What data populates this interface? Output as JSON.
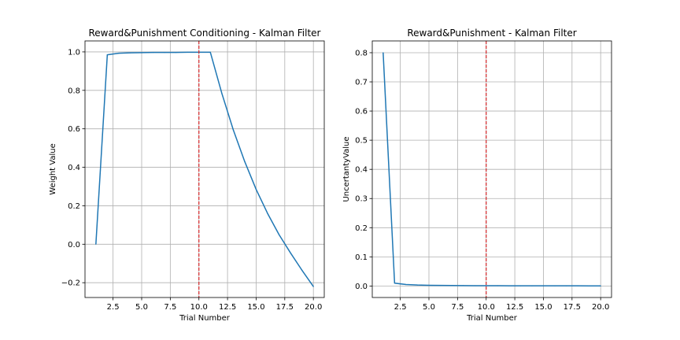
{
  "chart_data": [
    {
      "type": "line",
      "title": "Reward&Punishment Conditioning - Kalman Filter",
      "xlabel": "Trial Number",
      "ylabel": "Weight Value",
      "xlim": [
        0.05,
        20.95
      ],
      "ylim": [
        -0.277,
        1.057
      ],
      "xticks": [
        2.5,
        5.0,
        7.5,
        10.0,
        12.5,
        15.0,
        17.5,
        20.0
      ],
      "xtick_labels": [
        "2.5",
        "5.0",
        "7.5",
        "10.0",
        "12.5",
        "15.0",
        "17.5",
        "20.0"
      ],
      "yticks": [
        -0.2,
        0.0,
        0.2,
        0.4,
        0.6,
        0.8,
        1.0
      ],
      "ytick_labels": [
        "−0.2",
        "0.0",
        "0.2",
        "0.4",
        "0.6",
        "0.8",
        "1.0"
      ],
      "grid": true,
      "vline": {
        "x": 10,
        "color": "#d62728",
        "style": "dashed"
      },
      "series": [
        {
          "color": "#1f77b4",
          "x": [
            1,
            2,
            3,
            4,
            5,
            6,
            7,
            8,
            9,
            10,
            11,
            12,
            13,
            14,
            15,
            16,
            17,
            18,
            19,
            20
          ],
          "y": [
            0.0,
            0.985,
            0.993,
            0.995,
            0.996,
            0.997,
            0.997,
            0.997,
            0.998,
            0.998,
            0.998,
            0.785,
            0.595,
            0.43,
            0.285,
            0.16,
            0.05,
            -0.045,
            -0.135,
            -0.22
          ]
        }
      ]
    },
    {
      "type": "line",
      "title": "Reward&Punishment - Kalman Filter",
      "xlabel": "Trial Number",
      "ylabel": "UncertantyValue",
      "xlim": [
        0.05,
        20.95
      ],
      "ylim": [
        -0.0394,
        0.8404
      ],
      "xticks": [
        2.5,
        5.0,
        7.5,
        10.0,
        12.5,
        15.0,
        17.5,
        20.0
      ],
      "xtick_labels": [
        "2.5",
        "5.0",
        "7.5",
        "10.0",
        "12.5",
        "15.0",
        "17.5",
        "20.0"
      ],
      "yticks": [
        0.0,
        0.1,
        0.2,
        0.3,
        0.4,
        0.5,
        0.6,
        0.7,
        0.8
      ],
      "ytick_labels": [
        "0.0",
        "0.1",
        "0.2",
        "0.3",
        "0.4",
        "0.5",
        "0.6",
        "0.7",
        "0.8"
      ],
      "grid": true,
      "vline": {
        "x": 10,
        "color": "#d62728",
        "style": "dashed"
      },
      "series": [
        {
          "color": "#1f77b4",
          "x": [
            1,
            2,
            3,
            4,
            5,
            6,
            7,
            8,
            9,
            10,
            11,
            12,
            13,
            14,
            15,
            16,
            17,
            18,
            19,
            20
          ],
          "y": [
            0.8,
            0.0099,
            0.005,
            0.0033,
            0.0025,
            0.002,
            0.0017,
            0.0014,
            0.0012,
            0.0011,
            0.001,
            0.0009,
            0.0008,
            0.0008,
            0.0007,
            0.0007,
            0.0006,
            0.0006,
            0.0005,
            0.0005
          ]
        }
      ]
    }
  ]
}
